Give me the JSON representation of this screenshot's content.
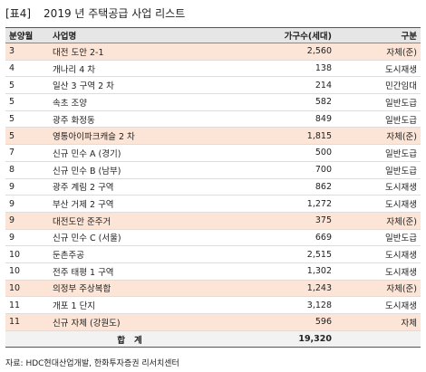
{
  "header": {
    "tag": "[표4]",
    "title": "2019 년 주택공급 사업 리스트"
  },
  "table": {
    "columns": [
      "분양월",
      "사업명",
      "가구수(세대)",
      "구분"
    ],
    "rows": [
      {
        "cells": [
          "3",
          "대전 도안 2-1",
          "2,560",
          "자체(준)"
        ],
        "highlight": true
      },
      {
        "cells": [
          "4",
          "개나리 4 차",
          "138",
          "도시재생"
        ],
        "highlight": false
      },
      {
        "cells": [
          "5",
          "일산 3 구역 2 차",
          "214",
          "민간임대"
        ],
        "highlight": false
      },
      {
        "cells": [
          "5",
          "속초 조양",
          "582",
          "일반도급"
        ],
        "highlight": false
      },
      {
        "cells": [
          "5",
          "광주 화정동",
          "849",
          "일반도급"
        ],
        "highlight": false
      },
      {
        "cells": [
          "5",
          "영통아이파크캐슬 2 차",
          "1,815",
          "자체(준)"
        ],
        "highlight": true
      },
      {
        "cells": [
          "7",
          "신규 민수 A (경기)",
          "500",
          "일반도급"
        ],
        "highlight": false
      },
      {
        "cells": [
          "8",
          "신규 민수 B (남부)",
          "700",
          "일반도급"
        ],
        "highlight": false
      },
      {
        "cells": [
          "9",
          "광주 계림 2 구역",
          "862",
          "도시재생"
        ],
        "highlight": false
      },
      {
        "cells": [
          "9",
          "부산 거제 2 구역",
          "1,272",
          "도시재생"
        ],
        "highlight": false
      },
      {
        "cells": [
          "9",
          "대전도안 준주거",
          "375",
          "자체(준)"
        ],
        "highlight": true
      },
      {
        "cells": [
          "9",
          "신규 민수 C (서울)",
          "669",
          "일반도급"
        ],
        "highlight": false
      },
      {
        "cells": [
          "10",
          "둔촌주공",
          "2,515",
          "도시재생"
        ],
        "highlight": false
      },
      {
        "cells": [
          "10",
          "전주 태평 1 구역",
          "1,302",
          "도시재생"
        ],
        "highlight": false
      },
      {
        "cells": [
          "10",
          "의정부 주상복합",
          "1,243",
          "자체(준)"
        ],
        "highlight": true
      },
      {
        "cells": [
          "11",
          "개포 1 단지",
          "3,128",
          "도시재생"
        ],
        "highlight": false
      },
      {
        "cells": [
          "11",
          "신규 자체 (강원도)",
          "596",
          "자체"
        ],
        "highlight": true
      }
    ],
    "total": {
      "label": "합   계",
      "value": "19,320"
    },
    "highlight_color": "#fce4d6"
  },
  "source": "자료: HDC현대산업개발, 한화투자증권 리서치센터"
}
